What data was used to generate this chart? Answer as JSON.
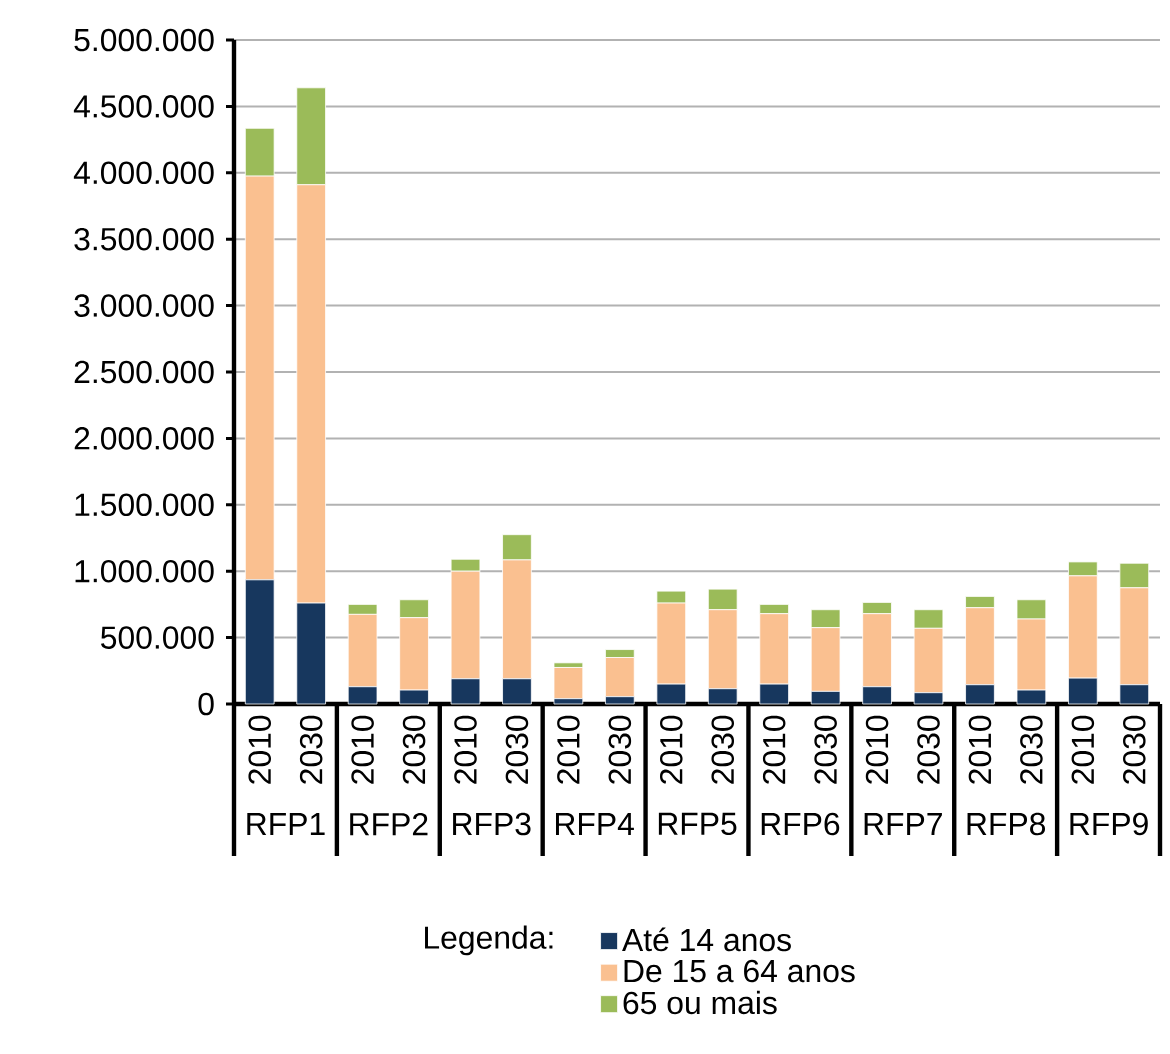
{
  "chart_data": {
    "type": "bar",
    "stacked": true,
    "categories": [
      "2010",
      "2030",
      "2010",
      "2030",
      "2010",
      "2030",
      "2010",
      "2030",
      "2010",
      "2030",
      "2010",
      "2030",
      "2010",
      "2030",
      "2010",
      "2030",
      "2010",
      "2030"
    ],
    "annotations": [
      "RFP1",
      "RFP2",
      "RFP3",
      "RFP4",
      "RFP5",
      "RFP6",
      "RFP7",
      "RFP8",
      "RFP9"
    ],
    "series": [
      {
        "name": "Até 14 anos",
        "color": "#17375e",
        "values": [
          935000,
          760000,
          130000,
          105000,
          190000,
          190000,
          40000,
          55000,
          150000,
          115000,
          150000,
          95000,
          130000,
          85000,
          145000,
          105000,
          195000,
          145000
        ]
      },
      {
        "name": "De 15 a 64 anos",
        "color": "#fac090",
        "values": [
          3040000,
          3150000,
          545000,
          545000,
          810000,
          895000,
          235000,
          295000,
          610000,
          595000,
          530000,
          480000,
          550000,
          485000,
          580000,
          535000,
          770000,
          730000
        ]
      },
      {
        "name": "65 ou mais",
        "color": "#9bbb59",
        "values": [
          360000,
          730000,
          75000,
          135000,
          90000,
          190000,
          35000,
          60000,
          90000,
          155000,
          70000,
          135000,
          85000,
          140000,
          85000,
          145000,
          105000,
          185000
        ]
      }
    ],
    "ylim": [
      0,
      5000000
    ],
    "yticks": [
      {
        "value": 0,
        "label": "0"
      },
      {
        "value": 500000,
        "label": "500.000"
      },
      {
        "value": 1000000,
        "label": "1.000.000"
      },
      {
        "value": 1500000,
        "label": "1.500.000"
      },
      {
        "value": 2000000,
        "label": "2.000.000"
      },
      {
        "value": 2500000,
        "label": "2.500.000"
      },
      {
        "value": 3000000,
        "label": "3.000.000"
      },
      {
        "value": 3500000,
        "label": "3.500.000"
      },
      {
        "value": 4000000,
        "label": "4.000.000"
      },
      {
        "value": 4500000,
        "label": "4.500.000"
      },
      {
        "value": 5000000,
        "label": "5.000.000"
      }
    ],
    "grid": "y",
    "legend": "bottom",
    "legend_title": "Legenda:"
  }
}
